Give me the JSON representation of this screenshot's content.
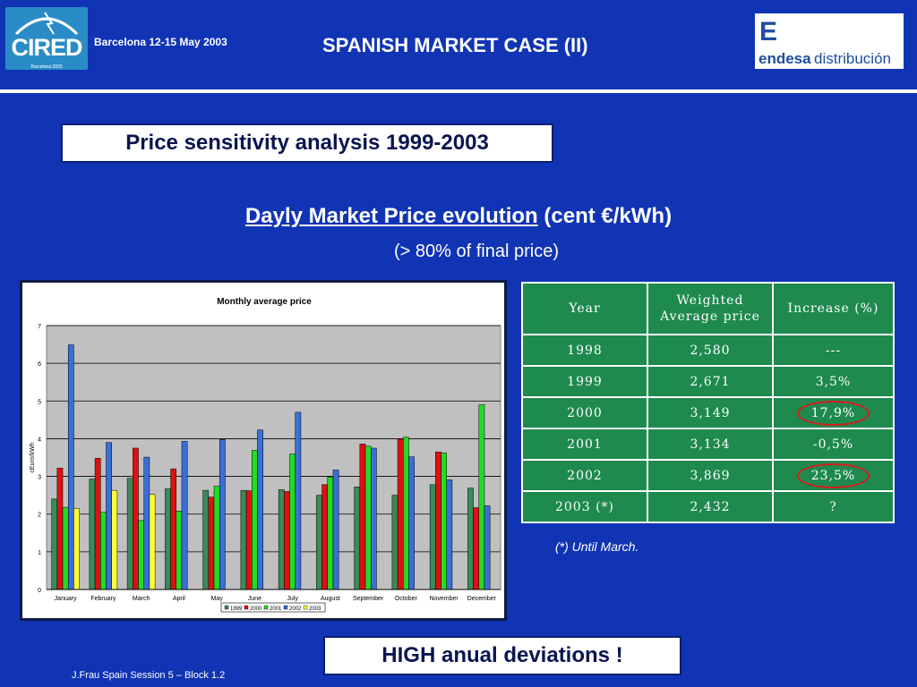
{
  "header": {
    "logo_left": "CIRED",
    "logo_left_sub": "Barcelona 2003",
    "date": "Barcelona  12-15 May 2003",
    "title": "SPANISH MARKET CASE (II)",
    "logo_right_mark": "E",
    "logo_right_word1": "endesa",
    "logo_right_word2": "distribución"
  },
  "section_title": "Price sensitivity analysis 1999-2003",
  "subtitle_underlined": "Dayly Market Price evolution",
  "subtitle_rest": " (cent €/kWh)",
  "subtitle2": "(> 80% of final price)",
  "colors": {
    "background": "#1034b4",
    "table_green": "#1e8a4e",
    "highlight": "#d81c1c"
  },
  "chart_data": {
    "type": "bar",
    "title": "Monthly average price",
    "ylabel": "cEuro/kWh",
    "xlabel": "",
    "ylim": [
      0,
      7
    ],
    "yticks": [
      0,
      1,
      2,
      3,
      4,
      5,
      6,
      7
    ],
    "grid": true,
    "legend_position": "bottom",
    "categories": [
      "January",
      "February",
      "March",
      "April",
      "May",
      "June",
      "July",
      "August",
      "September",
      "October",
      "November",
      "December"
    ],
    "series": [
      {
        "name": "1999",
        "color": "#3a8a5a",
        "values": [
          2.4,
          2.93,
          2.95,
          2.67,
          2.63,
          2.63,
          2.65,
          2.5,
          2.72,
          2.5,
          2.78,
          2.69
        ]
      },
      {
        "name": "2000",
        "color": "#e01010",
        "values": [
          3.22,
          3.48,
          3.75,
          3.2,
          2.45,
          2.62,
          2.6,
          2.78,
          3.86,
          3.99,
          3.65,
          2.17
        ]
      },
      {
        "name": "2001",
        "color": "#22dd22",
        "values": [
          2.18,
          2.05,
          1.83,
          2.08,
          2.74,
          3.69,
          3.59,
          2.98,
          3.8,
          4.04,
          3.62,
          4.9
        ]
      },
      {
        "name": "2002",
        "color": "#3a6fd8",
        "values": [
          6.49,
          3.9,
          3.51,
          3.93,
          3.98,
          4.23,
          4.7,
          3.17,
          3.75,
          3.52,
          2.91,
          2.22
        ]
      },
      {
        "name": "2003",
        "color": "#ffff40",
        "values": [
          2.15,
          2.63,
          2.52,
          null,
          null,
          null,
          null,
          null,
          null,
          null,
          null,
          null
        ]
      }
    ]
  },
  "table": {
    "headers": [
      "Year",
      "Weighted Average price",
      "Increase (%)"
    ],
    "rows": [
      [
        "1998",
        "2,580",
        "---"
      ],
      [
        "1999",
        "2,671",
        "3,5%"
      ],
      [
        "2000",
        "3,149",
        "17,9%"
      ],
      [
        "2001",
        "3,134",
        "-0,5%"
      ],
      [
        "2002",
        "3,869",
        "23,5%"
      ],
      [
        "2003 (*)",
        "2,432",
        "?"
      ]
    ]
  },
  "footnote": "(*) Until March.",
  "conclusion": "HIGH anual deviations !",
  "footer": "J.Frau  Spain  Session 5 – Block 1.2"
}
